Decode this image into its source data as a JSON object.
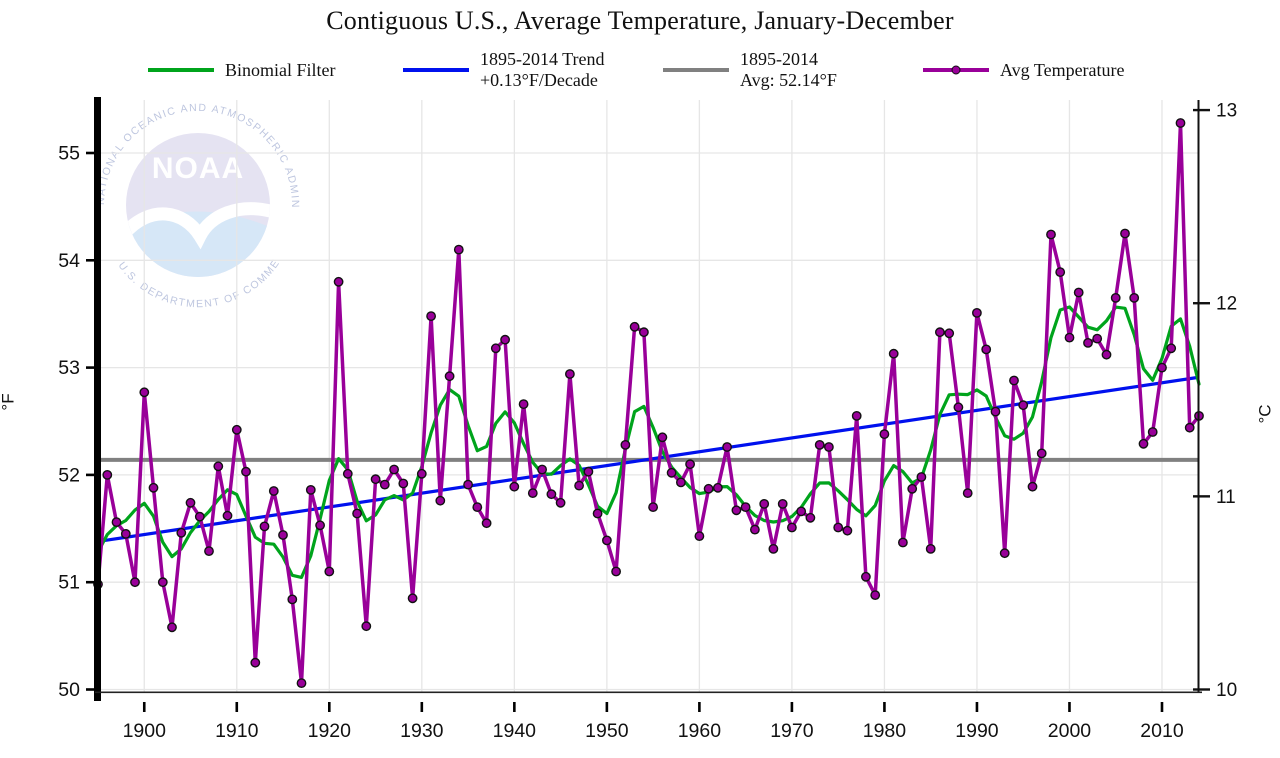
{
  "title": "Contiguous U.S., Average Temperature, January-December",
  "axes": {
    "left_label": "°F",
    "right_label": "°C",
    "yticks_f": [
      50,
      51,
      52,
      53,
      54,
      55
    ],
    "yticks_c": [
      10,
      11,
      12,
      13
    ],
    "xticks": [
      1900,
      1910,
      1920,
      1930,
      1940,
      1950,
      1960,
      1970,
      1980,
      1990,
      2000,
      2010
    ]
  },
  "legend": [
    {
      "id": "binomial-filter",
      "line1": "Binomial Filter",
      "color": "#00a41c",
      "marker": false
    },
    {
      "id": "trend-line",
      "line1": "1895-2014 Trend",
      "line2": "+0.13°F/Decade",
      "color": "#0011ee",
      "marker": false
    },
    {
      "id": "average-line",
      "line1": "1895-2014",
      "line2": "Avg: 52.14°F",
      "color": "#808080",
      "marker": false
    },
    {
      "id": "avg-temperature",
      "line1": "Avg Temperature",
      "color": "#990099",
      "marker": true
    }
  ],
  "watermark": {
    "ring_top": "NATIONAL OCEANIC AND ATMOSPHERIC ADMINISTRATION",
    "name": "NOAA",
    "ring_bottom": "U.S. DEPARTMENT OF COMMERCE"
  },
  "colors": {
    "avg_temperature": "#990099",
    "binomial_filter": "#00a41c",
    "trend": "#0011ee",
    "average": "#808080",
    "gridline": "#e6e6e6",
    "axis": "#111111"
  },
  "chart_data": {
    "type": "line",
    "title": "Contiguous U.S., Average Temperature, January-December",
    "xlabel": "",
    "ylabel_left": "°F",
    "ylabel_right": "°C",
    "xlim": [
      1895,
      2014
    ],
    "ylim_f": [
      49.95,
      55.5
    ],
    "grid": true,
    "legend_position": "top",
    "average_1895_2014_f": 52.14,
    "trend_f_per_decade": 0.13,
    "trend_endpoints": {
      "start_year": 1895,
      "start_f": 51.38,
      "end_year": 2014,
      "end_f": 52.91
    },
    "years": [
      1895,
      1896,
      1897,
      1898,
      1899,
      1900,
      1901,
      1902,
      1903,
      1904,
      1905,
      1906,
      1907,
      1908,
      1909,
      1910,
      1911,
      1912,
      1913,
      1914,
      1915,
      1916,
      1917,
      1918,
      1919,
      1920,
      1921,
      1922,
      1923,
      1924,
      1925,
      1926,
      1927,
      1928,
      1929,
      1930,
      1931,
      1932,
      1933,
      1934,
      1935,
      1936,
      1937,
      1938,
      1939,
      1940,
      1941,
      1942,
      1943,
      1944,
      1945,
      1946,
      1947,
      1948,
      1949,
      1950,
      1951,
      1952,
      1953,
      1954,
      1955,
      1956,
      1957,
      1958,
      1959,
      1960,
      1961,
      1962,
      1963,
      1964,
      1965,
      1966,
      1967,
      1968,
      1969,
      1970,
      1971,
      1972,
      1973,
      1974,
      1975,
      1976,
      1977,
      1978,
      1979,
      1980,
      1981,
      1982,
      1983,
      1984,
      1985,
      1986,
      1987,
      1988,
      1989,
      1990,
      1991,
      1992,
      1993,
      1994,
      1995,
      1996,
      1997,
      1998,
      1999,
      2000,
      2001,
      2002,
      2003,
      2004,
      2005,
      2006,
      2007,
      2008,
      2009,
      2010,
      2011,
      2012,
      2013,
      2014
    ],
    "series": [
      {
        "name": "Avg Temperature",
        "type": "line+markers",
        "color": "#990099",
        "values_f": [
          50.98,
          52.0,
          51.56,
          51.45,
          51.0,
          52.77,
          51.88,
          51.0,
          50.58,
          51.46,
          51.74,
          51.61,
          51.29,
          52.08,
          51.62,
          52.42,
          52.03,
          50.25,
          51.52,
          51.85,
          51.44,
          50.84,
          50.06,
          51.86,
          51.53,
          51.1,
          53.8,
          52.01,
          51.64,
          50.59,
          51.96,
          51.91,
          52.05,
          51.92,
          50.85,
          52.01,
          53.48,
          51.76,
          52.92,
          54.1,
          51.91,
          51.7,
          51.55,
          53.18,
          53.26,
          51.89,
          52.66,
          51.83,
          52.05,
          51.82,
          51.74,
          52.94,
          51.9,
          52.03,
          51.64,
          51.39,
          51.1,
          52.28,
          53.38,
          53.33,
          51.7,
          52.35,
          52.02,
          51.93,
          52.1,
          51.43,
          51.87,
          51.88,
          52.26,
          51.67,
          51.7,
          51.49,
          51.73,
          51.31,
          51.73,
          51.51,
          51.66,
          51.6,
          52.28,
          52.26,
          51.51,
          51.48,
          52.55,
          51.05,
          50.88,
          52.38,
          53.13,
          51.37,
          51.87,
          51.98,
          51.31,
          53.33,
          53.32,
          52.63,
          51.83,
          53.51,
          53.17,
          52.59,
          51.27,
          52.88,
          52.65,
          51.89,
          52.2,
          54.24,
          53.89,
          53.28,
          53.7,
          53.23,
          53.27,
          53.12,
          53.65,
          54.25,
          53.65,
          52.29,
          52.4,
          53.0,
          53.18,
          55.28,
          52.44,
          52.55
        ]
      },
      {
        "name": "Binomial Filter",
        "type": "line",
        "color": "#00a41c",
        "derived_from": "Avg Temperature",
        "method": "9-point binomial smoothing"
      },
      {
        "name": "1895-2014 Trend +0.13°F/Decade",
        "type": "line",
        "color": "#0011ee"
      },
      {
        "name": "1895-2014 Avg: 52.14°F",
        "type": "line",
        "color": "#808080"
      }
    ]
  }
}
